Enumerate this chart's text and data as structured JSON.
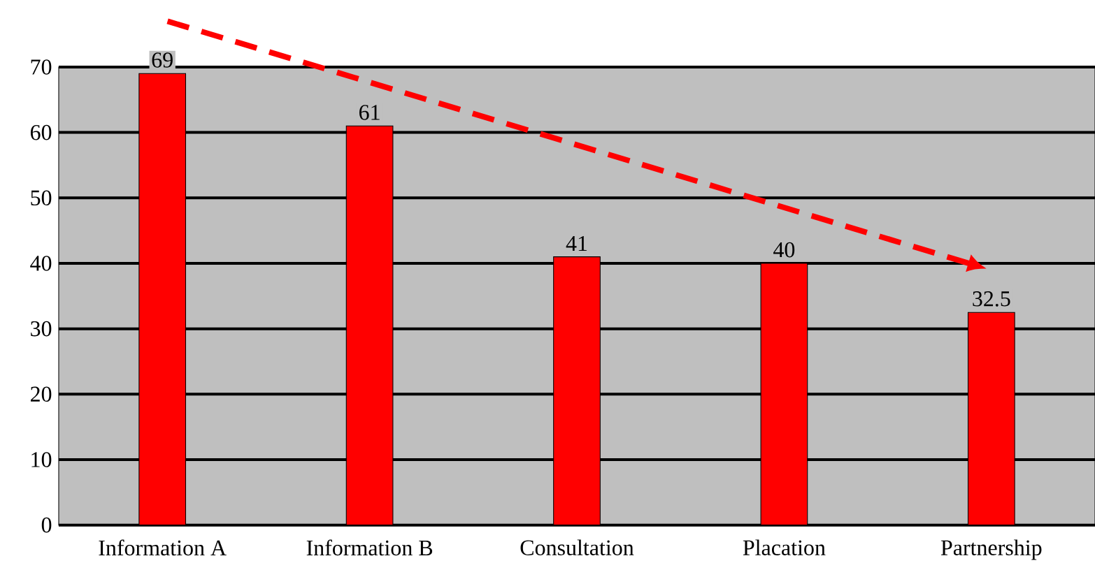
{
  "chart_data": {
    "type": "bar",
    "categories": [
      "Information A",
      "Information B",
      "Consultation",
      "Placation",
      "Partnership"
    ],
    "values": [
      69,
      61,
      41,
      40,
      32.5
    ],
    "color": "#ff0000",
    "ylim": [
      0,
      70
    ],
    "yticks": [
      0,
      10,
      20,
      30,
      40,
      50,
      60,
      70
    ],
    "grid": "y",
    "data_labels": true
  }
}
